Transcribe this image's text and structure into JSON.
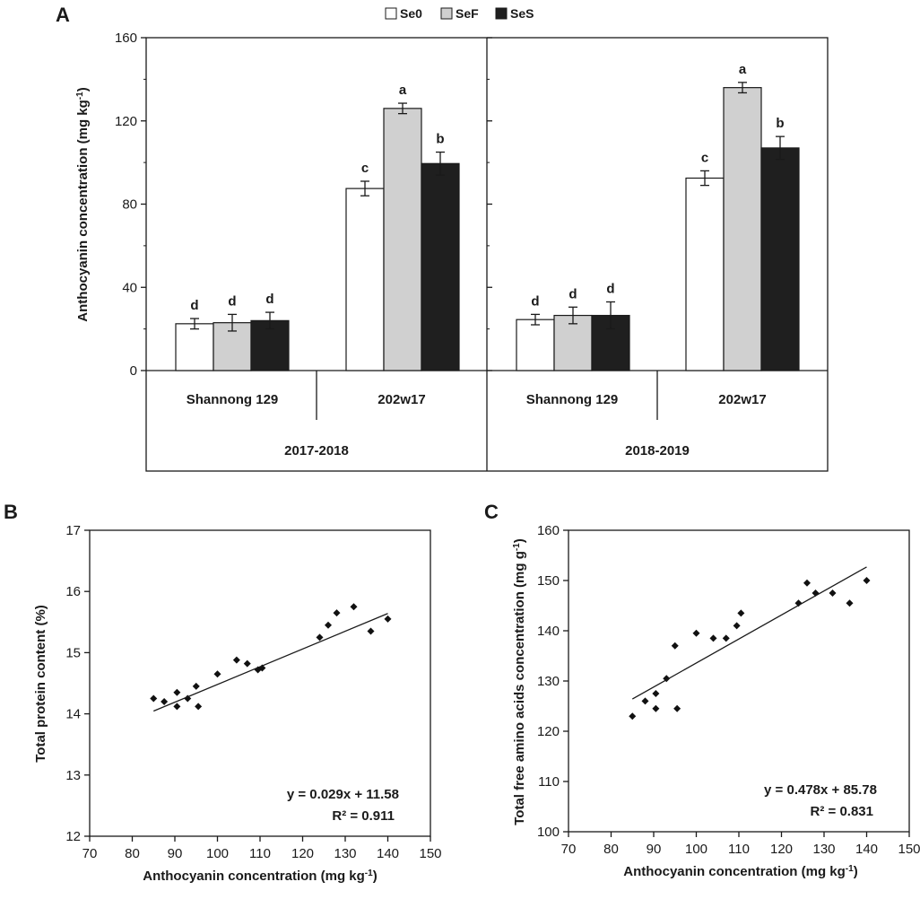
{
  "panel_labels": {
    "a": "A",
    "b": "B",
    "c": "C"
  },
  "legend": [
    {
      "name": "Se0",
      "color": "#ffffff"
    },
    {
      "name": "SeF",
      "color": "#d0d0d0"
    },
    {
      "name": "SeS",
      "color": "#1f1f1f"
    }
  ],
  "colors": {
    "axis": "#1a1a1a",
    "se0": "#ffffff",
    "sef": "#d0d0d0",
    "ses": "#1f1f1f"
  },
  "chart_data": [
    {
      "type": "bar",
      "id": "A",
      "ylabel": "Anthocyanin concentration (mg kg-1)",
      "ylabel_main": "Anthocyanin concentration (mg  kg",
      "ylabel_sup": "-1",
      "ylabel_close": ")",
      "ylim": [
        0,
        160
      ],
      "yticks": [
        "0",
        "40",
        "80",
        "120",
        "160"
      ],
      "seasons": [
        "2017-2018",
        "2018-2019"
      ],
      "categories": [
        "Shannong 129",
        "202w17",
        "Shannong 129",
        "202w17"
      ],
      "series": [
        {
          "name": "Se0",
          "values": [
            22.5,
            87.5,
            24.5,
            92.5
          ],
          "errors": [
            2.5,
            3.5,
            2.5,
            3.5
          ],
          "letters": [
            "d",
            "c",
            "d",
            "c"
          ]
        },
        {
          "name": "SeF",
          "values": [
            23.0,
            126.0,
            26.5,
            136.0
          ],
          "errors": [
            4.0,
            2.5,
            4.0,
            2.5
          ],
          "letters": [
            "d",
            "a",
            "d",
            "a"
          ]
        },
        {
          "name": "SeS",
          "values": [
            24.0,
            99.5,
            26.5,
            107.0
          ],
          "errors": [
            4.0,
            5.5,
            6.5,
            5.5
          ],
          "letters": [
            "d",
            "b",
            "d",
            "b"
          ]
        }
      ]
    },
    {
      "type": "scatter",
      "id": "B",
      "xlabel": "Anthocyanin concentration (mg kg-1)",
      "xlabel_main": "Anthocyanin concentration (mg  kg",
      "xlabel_sup": "-1",
      "xlabel_close": ")",
      "ylabel": "Total protein content (%)",
      "xlim": [
        70,
        150
      ],
      "ylim": [
        12,
        17
      ],
      "xticks": [
        "70",
        "80",
        "90",
        "100",
        "110",
        "120",
        "130",
        "140",
        "150"
      ],
      "yticks": [
        "12",
        "13",
        "14",
        "15",
        "16",
        "17"
      ],
      "points": [
        [
          85,
          14.25
        ],
        [
          87.5,
          14.2
        ],
        [
          90.5,
          14.35
        ],
        [
          90.5,
          14.12
        ],
        [
          93,
          14.25
        ],
        [
          95,
          14.45
        ],
        [
          95.5,
          14.12
        ],
        [
          100,
          14.65
        ],
        [
          104.5,
          14.88
        ],
        [
          107,
          14.82
        ],
        [
          109.5,
          14.72
        ],
        [
          110.5,
          14.75
        ],
        [
          124,
          15.25
        ],
        [
          126,
          15.45
        ],
        [
          128,
          15.65
        ],
        [
          132,
          15.75
        ],
        [
          136,
          15.35
        ],
        [
          140,
          15.55
        ]
      ],
      "fit": {
        "slope": 0.029,
        "intercept": 11.58,
        "x_range": [
          85,
          140
        ]
      },
      "equation": "y = 0.029x + 11.58",
      "r2": "R² = 0.911"
    },
    {
      "type": "scatter",
      "id": "C",
      "xlabel": "Anthocyanin concentration (mg kg-1)",
      "xlabel_main": "Anthocyanin concentration (mg  kg",
      "xlabel_sup": "-1",
      "xlabel_close": ")",
      "ylabel": "Total free amino acids concentration (mg g-1)",
      "ylabel_main": "Total  free amino acids concentration (mg g",
      "ylabel_sup": "-1",
      "ylabel_close": ")",
      "xlim": [
        70,
        150
      ],
      "ylim": [
        100,
        160
      ],
      "xticks": [
        "70",
        "80",
        "90",
        "100",
        "110",
        "120",
        "130",
        "140",
        "150"
      ],
      "yticks": [
        "100",
        "110",
        "120",
        "130",
        "140",
        "150",
        "160"
      ],
      "points": [
        [
          85,
          123
        ],
        [
          88,
          126
        ],
        [
          90.5,
          127.5
        ],
        [
          90.5,
          124.5
        ],
        [
          93,
          130.5
        ],
        [
          95,
          137
        ],
        [
          95.5,
          124.5
        ],
        [
          100,
          139.5
        ],
        [
          104,
          138.5
        ],
        [
          107,
          138.5
        ],
        [
          109.5,
          141
        ],
        [
          110.5,
          143.5
        ],
        [
          124,
          145.5
        ],
        [
          126,
          149.5
        ],
        [
          128,
          147.5
        ],
        [
          132,
          147.5
        ],
        [
          136,
          145.5
        ],
        [
          140,
          150
        ]
      ],
      "fit": {
        "slope": 0.478,
        "intercept": 85.78,
        "x_range": [
          85,
          140
        ]
      },
      "equation": "y = 0.478x + 85.78",
      "r2": "R² = 0.831"
    }
  ]
}
